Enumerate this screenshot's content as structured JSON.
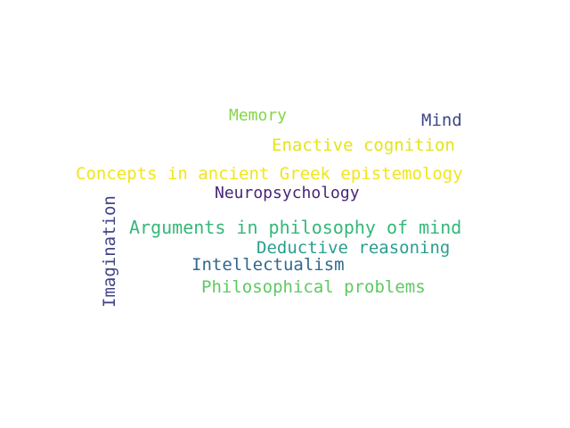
{
  "word_cloud": {
    "words": [
      {
        "id": "memory",
        "text": "Memory",
        "color": "#86d549"
      },
      {
        "id": "mind",
        "text": "Mind",
        "color": "#3f4788"
      },
      {
        "id": "enactive",
        "text": "Enactive cognition",
        "color": "#e5e419"
      },
      {
        "id": "concepts",
        "text": "Concepts in ancient Greek epistemology",
        "color": "#f1e51d"
      },
      {
        "id": "neuro",
        "text": "Neuropsychology",
        "color": "#482677"
      },
      {
        "id": "args",
        "text": "Arguments in philosophy of mind",
        "color": "#35b779"
      },
      {
        "id": "deduct",
        "text": "Deductive reasoning",
        "color": "#2a9d8f"
      },
      {
        "id": "intel",
        "text": "Intellectualism",
        "color": "#31688e"
      },
      {
        "id": "philprob",
        "text": "Philosophical problems",
        "color": "#5ec962"
      },
      {
        "id": "imag",
        "text": "Imagination",
        "color": "#414487"
      }
    ]
  }
}
